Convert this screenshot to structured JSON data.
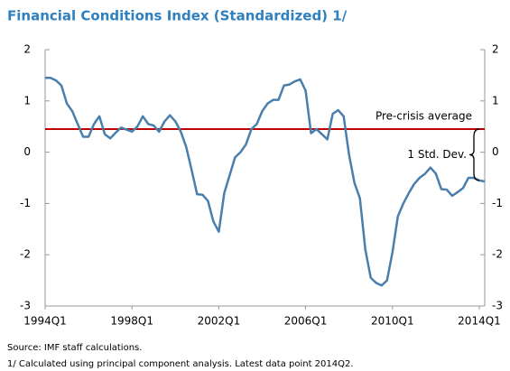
{
  "chart_data": {
    "type": "line",
    "title": "Financial Conditions Index (Standardized) 1/",
    "categories": [
      "1994Q1",
      null,
      null,
      null,
      null,
      null,
      null,
      null,
      null,
      null,
      null,
      null,
      null,
      null,
      null,
      null,
      "1998Q1",
      null,
      null,
      null,
      null,
      null,
      null,
      null,
      null,
      null,
      null,
      null,
      null,
      null,
      null,
      null,
      "2002Q1",
      null,
      null,
      null,
      null,
      null,
      null,
      null,
      null,
      null,
      null,
      null,
      null,
      null,
      null,
      null,
      "2006Q1",
      null,
      null,
      null,
      null,
      null,
      null,
      null,
      null,
      null,
      null,
      null,
      null,
      null,
      null,
      null,
      "2010Q1",
      null,
      null,
      null,
      null,
      null,
      null,
      null,
      null,
      null,
      null,
      null,
      null,
      null,
      null,
      null,
      "2014Q1",
      null
    ],
    "values": [
      1.45,
      1.45,
      1.4,
      1.3,
      0.95,
      0.8,
      0.55,
      0.3,
      0.3,
      0.55,
      0.7,
      0.35,
      0.27,
      0.38,
      0.48,
      0.44,
      0.4,
      0.5,
      0.7,
      0.55,
      0.52,
      0.4,
      0.6,
      0.72,
      0.6,
      0.4,
      0.1,
      -0.35,
      -0.82,
      -0.83,
      -0.95,
      -1.35,
      -1.55,
      -0.8,
      -0.45,
      -0.1,
      0.0,
      0.15,
      0.45,
      0.55,
      0.8,
      0.95,
      1.02,
      1.02,
      1.3,
      1.32,
      1.38,
      1.42,
      1.2,
      0.37,
      0.45,
      0.35,
      0.25,
      0.75,
      0.82,
      0.7,
      -0.05,
      -0.6,
      -0.9,
      -1.9,
      -2.45,
      -2.55,
      -2.6,
      -2.5,
      -1.95,
      -1.25,
      -1.0,
      -0.8,
      -0.62,
      -0.5,
      -0.42,
      -0.3,
      -0.42,
      -0.72,
      -0.73,
      -0.85,
      -0.78,
      -0.7,
      -0.5,
      -0.5,
      -0.55,
      -0.57
    ],
    "color": "#4a7fad",
    "ylim": [
      -3,
      2
    ],
    "yticks": [
      -3,
      -2,
      -1,
      0,
      1,
      2
    ],
    "y2lim": [
      -3,
      2
    ],
    "y2ticks": [
      -3,
      -2,
      -1,
      0,
      1,
      2
    ],
    "reference_line": {
      "value": 0.45,
      "label": "Pre-crisis average",
      "color": "#c00000"
    },
    "std_dev": {
      "label": "1 Std. Dev.",
      "size": 1
    },
    "notes": [
      "Source: IMF staff calculations.",
      "1/ Calculated using principal component analysis. Latest data point 2014Q2."
    ]
  }
}
